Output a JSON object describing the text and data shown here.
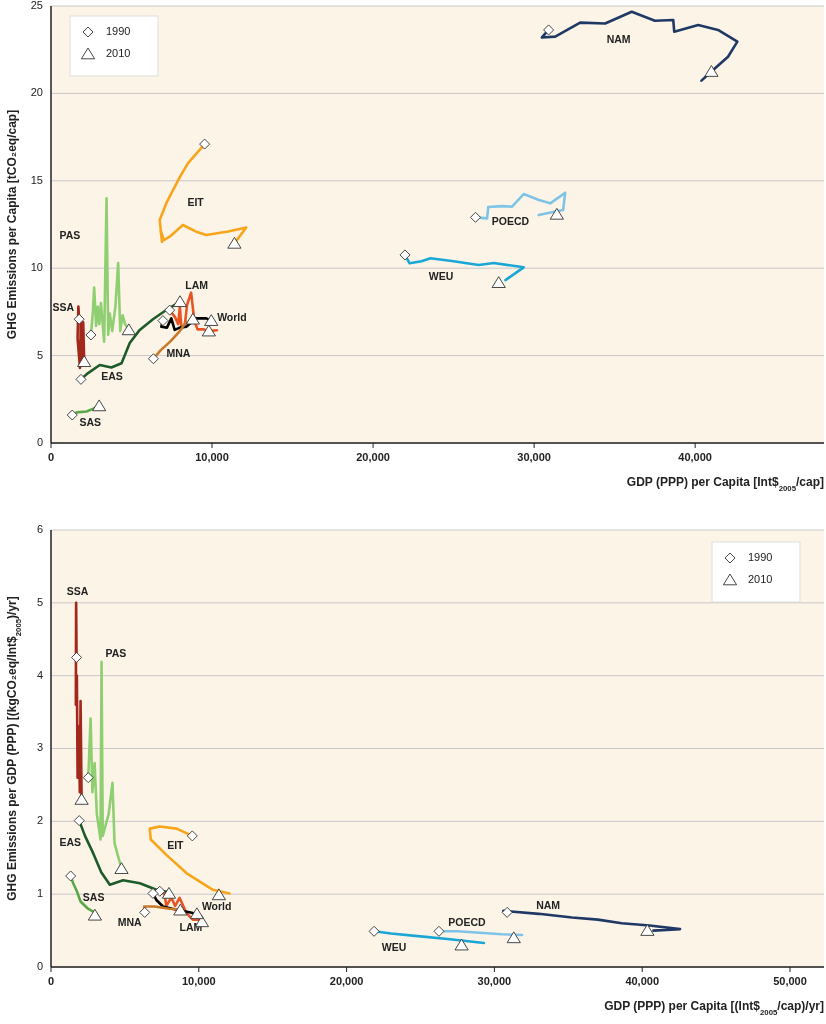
{
  "chart_data": [
    {
      "type": "line",
      "xlabel": "GDP (PPP) per Capita [Int$$_{2005}$/cap]",
      "ylabel": "GHG Emissions per Capita [tCO₂eq/cap]",
      "xlim": [
        0,
        48000
      ],
      "ylim": [
        0,
        25
      ],
      "xticks": [
        0,
        {
          "value": 10000,
          "label": "10,000"
        },
        {
          "value": 20000,
          "label": "20,000"
        },
        {
          "value": 30000,
          "label": "30,000"
        },
        {
          "value": 40000,
          "label": "40,000"
        }
      ],
      "yticks": [
        0,
        5,
        10,
        15,
        20,
        25
      ],
      "grid": "y",
      "legend": "top left",
      "series": [
        {
          "name": "SSA",
          "color": "#a3281c",
          "x": [
            1750,
            1700,
            1650,
            1800,
            1850,
            1950,
            2000,
            2060
          ],
          "values": [
            7.08,
            7.8,
            6.0,
            4.3,
            7.0,
            4.5,
            6.9,
            4.65
          ]
        },
        {
          "name": "PAS",
          "color": "#8fcf72",
          "x": [
            2480,
            2600,
            2680,
            2800,
            2900,
            3000,
            3100,
            3300,
            3450,
            3550,
            3650,
            3800,
            4000,
            4170,
            4300,
            4450,
            4600,
            4830
          ],
          "values": [
            6.18,
            7.5,
            8.9,
            6.7,
            7.8,
            6.8,
            8.0,
            5.8,
            14.0,
            6.2,
            7.4,
            6.4,
            7.8,
            10.3,
            6.4,
            7.3,
            6.8,
            6.47
          ]
        },
        {
          "name": "EAS",
          "color": "#1e5b2a",
          "x": [
            1860,
            2300,
            3030,
            3750,
            4380,
            4890,
            5510,
            6330,
            7160,
            8010
          ],
          "values": [
            3.64,
            4.0,
            4.46,
            4.32,
            4.56,
            5.72,
            6.47,
            7.08,
            7.61,
            8.08
          ]
        },
        {
          "name": "SAS",
          "color": "#5aa846",
          "x": [
            1320,
            1600,
            2200,
            2600,
            2990
          ],
          "values": [
            1.6,
            1.75,
            1.8,
            1.95,
            2.12
          ]
        },
        {
          "name": "EIT",
          "color": "#f8a51b",
          "x": [
            9540,
            8500,
            7990,
            7200,
            6750,
            6900,
            6800,
            7000,
            7370,
            8190,
            9020,
            9640,
            11000,
            12120,
            11390
          ],
          "values": [
            17.1,
            16.0,
            15.2,
            13.8,
            12.76,
            11.5,
            12.2,
            11.6,
            11.8,
            12.47,
            12.09,
            11.9,
            12.1,
            12.33,
            11.42
          ]
        },
        {
          "name": "LAM",
          "color": "#e85525",
          "x": [
            7370,
            7700,
            7900,
            8000,
            8100,
            8300,
            8450,
            8700,
            8900,
            9100,
            9500,
            9800,
            10300
          ],
          "values": [
            7.6,
            7.2,
            6.8,
            7.8,
            6.6,
            6.7,
            7.9,
            8.6,
            7.0,
            6.5,
            6.5,
            6.4,
            6.45
          ]
        },
        {
          "name": "World",
          "color": "#000000",
          "x": [
            6950,
            6850,
            7200,
            7470,
            7680,
            8000,
            8400,
            9020,
            9640,
            9950
          ],
          "values": [
            7.0,
            6.65,
            6.6,
            7.13,
            6.47,
            6.6,
            6.65,
            7.13,
            7.13,
            7.0
          ]
        },
        {
          "name": "MNA",
          "color": "#c87a2a",
          "x": [
            6360,
            6800,
            7400,
            8000,
            8400
          ],
          "values": [
            4.82,
            5.3,
            5.8,
            6.4,
            6.94
          ]
        },
        {
          "name": "NAM",
          "color": "#1f3864",
          "x": [
            30900,
            30480,
            31310,
            32860,
            34410,
            36060,
            37500,
            38640,
            38700,
            39360,
            40190,
            41420,
            42620,
            42040,
            41010,
            40390
          ],
          "values": [
            23.63,
            23.2,
            23.25,
            24.05,
            24.0,
            24.67,
            24.16,
            24.2,
            23.53,
            23.7,
            23.91,
            23.63,
            22.96,
            22.1,
            21.25,
            20.73
          ]
        },
        {
          "name": "POECD",
          "color": "#7fc4e6",
          "x": [
            26360,
            27080,
            27150,
            28000,
            28630,
            29350,
            30300,
            31000,
            31930,
            31800,
            31100,
            30280
          ],
          "values": [
            12.91,
            12.85,
            13.5,
            13.55,
            13.52,
            14.24,
            13.9,
            13.71,
            14.32,
            13.33,
            13.2,
            13.04
          ]
        },
        {
          "name": "WEU",
          "color": "#1aa7d6",
          "x": [
            21980,
            22270,
            23000,
            23570,
            25000,
            26560,
            27500,
            29350,
            28220
          ],
          "values": [
            10.76,
            10.28,
            10.4,
            10.57,
            10.4,
            10.18,
            10.3,
            10.05,
            9.32
          ]
        },
        {
          "name": "1990",
          "type": "scatter",
          "marker": "diamond",
          "color": "#ffffff",
          "x": [
            1750,
            2480,
            1860,
            1320,
            9540,
            7370,
            6950,
            6360,
            30900,
            26360,
            21980
          ],
          "values": [
            7.08,
            6.18,
            3.64,
            1.6,
            17.1,
            7.6,
            7.0,
            4.82,
            23.63,
            12.91,
            10.76
          ]
        },
        {
          "name": "2010",
          "type": "scatter",
          "marker": "triangle",
          "color": "#ffffff",
          "x": [
            2060,
            4830,
            8010,
            2990,
            11390,
            9800,
            9950,
            8810,
            41010,
            31410,
            27800
          ],
          "values": [
            4.65,
            6.47,
            8.08,
            2.12,
            11.42,
            6.4,
            7.0,
            7.08,
            21.25,
            13.08,
            9.17
          ]
        }
      ]
    },
    {
      "type": "line",
      "xlabel": "GDP (PPP) per Capita [(Int$$_{2005}$/cap)/yr]",
      "ylabel": "GHG Emissions per GDP (PPP) [(kgCO₂eq/Int$$_{2005}$)/yr]",
      "xlim": [
        0,
        52300
      ],
      "ylim": [
        0,
        6
      ],
      "xticks": [
        0,
        {
          "value": 10000,
          "label": "10,000"
        },
        {
          "value": 20000,
          "label": "20,000"
        },
        {
          "value": 30000,
          "label": "30,000"
        },
        {
          "value": 40000,
          "label": "40,000"
        },
        {
          "value": 50000,
          "label": "50,000"
        }
      ],
      "yticks": [
        0,
        1,
        2,
        3,
        4,
        5,
        6
      ],
      "grid": "y",
      "legend": "top right",
      "series": [
        {
          "name": "SSA",
          "color": "#a3281c",
          "x": [
            1730,
            1700,
            1680,
            1750,
            1800,
            1880,
            1950,
            2000,
            2070
          ],
          "values": [
            4.25,
            5.0,
            3.6,
            4.0,
            2.6,
            3.3,
            2.4,
            3.65,
            2.3
          ]
        },
        {
          "name": "PAS",
          "color": "#8fcf72",
          "x": [
            2520,
            2600,
            2680,
            2800,
            2950,
            3100,
            3350,
            3420,
            3500,
            3700,
            3900,
            4160,
            4300,
            4500,
            4770
          ],
          "values": [
            2.6,
            3.0,
            3.41,
            2.4,
            2.8,
            2.1,
            1.75,
            4.19,
            1.8,
            1.95,
            2.1,
            2.53,
            1.7,
            1.55,
            1.35
          ]
        },
        {
          "name": "EAS",
          "color": "#1e5b2a",
          "x": [
            1910,
            2300,
            2860,
            3400,
            3980,
            4880,
            6010,
            7130,
            7920
          ],
          "values": [
            2.01,
            1.8,
            1.56,
            1.3,
            1.13,
            1.19,
            1.15,
            1.06,
            1.03
          ]
        },
        {
          "name": "SAS",
          "color": "#5aa846",
          "x": [
            1330,
            1500,
            1730,
            2000,
            2500,
            2860
          ],
          "values": [
            1.25,
            1.15,
            1.05,
            0.9,
            0.8,
            0.76
          ]
        },
        {
          "name": "EIT",
          "color": "#f8a51b",
          "x": [
            9560,
            8500,
            7350,
            6680,
            6750,
            7810,
            9160,
            10950,
            12080
          ],
          "values": [
            1.8,
            1.9,
            1.93,
            1.9,
            1.75,
            1.54,
            1.29,
            1.06,
            1.01
          ]
        },
        {
          "name": "LAM",
          "color": "#e85525",
          "x": [
            7360,
            7690,
            7800,
            8140,
            8400,
            8700,
            9160,
            9600,
            10000
          ],
          "values": [
            1.04,
            1.0,
            0.84,
            0.95,
            0.84,
            0.95,
            0.74,
            0.65,
            0.65
          ]
        },
        {
          "name": "World",
          "color": "#000000",
          "x": [
            6900,
            7130,
            7580,
            8200,
            8700,
            9600,
            9870
          ],
          "values": [
            1.01,
            0.92,
            0.83,
            0.8,
            0.78,
            0.74,
            0.72
          ]
        },
        {
          "name": "MNA",
          "color": "#c87a2a",
          "x": [
            6340,
            6300,
            7000,
            8000,
            8700
          ],
          "values": [
            0.75,
            0.83,
            0.83,
            0.8,
            0.79
          ]
        },
        {
          "name": "NAM",
          "color": "#1f3864",
          "x": [
            30860,
            30600,
            33000,
            35250,
            37000,
            38620,
            40500,
            42560,
            40760
          ],
          "values": [
            0.75,
            0.77,
            0.73,
            0.68,
            0.65,
            0.6,
            0.57,
            0.52,
            0.5
          ]
        },
        {
          "name": "POECD",
          "color": "#7fc4e6",
          "x": [
            26250,
            27500,
            29000,
            30500,
            31870
          ],
          "values": [
            0.49,
            0.49,
            0.47,
            0.45,
            0.44
          ]
        },
        {
          "name": "WEU",
          "color": "#1aa7d6",
          "x": [
            21860,
            23000,
            25000,
            27000,
            29290
          ],
          "values": [
            0.49,
            0.46,
            0.42,
            0.38,
            0.33
          ]
        },
        {
          "name": "1990",
          "type": "scatter",
          "marker": "diamond",
          "color": "#ffffff",
          "x": [
            1730,
            2520,
            1910,
            1330,
            9560,
            7360,
            6900,
            6340,
            30860,
            26250,
            21860
          ],
          "values": [
            4.25,
            2.6,
            2.01,
            1.25,
            1.8,
            1.04,
            1.01,
            0.75,
            0.75,
            0.49,
            0.49
          ]
        },
        {
          "name": "2010",
          "type": "scatter",
          "marker": "triangle",
          "color": "#ffffff",
          "x": [
            2070,
            4770,
            7980,
            2970,
            11360,
            10210,
            9870,
            8750,
            40350,
            31310,
            27780
          ],
          "values": [
            2.3,
            1.35,
            1.01,
            0.71,
            0.99,
            0.62,
            0.73,
            0.78,
            0.5,
            0.4,
            0.3
          ]
        }
      ]
    }
  ]
}
